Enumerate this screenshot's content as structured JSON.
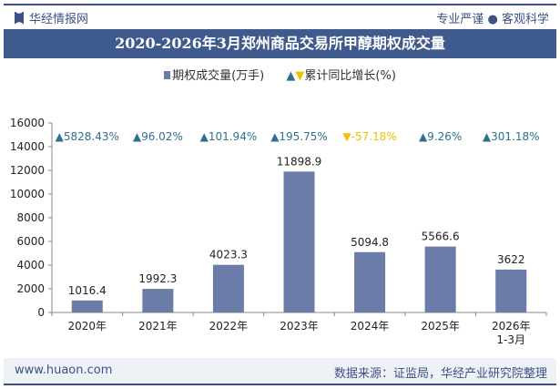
{
  "header": {
    "brand": "华经情报网",
    "slogan": "专业严谨 ● 客观科学"
  },
  "footer": {
    "site": "www.huaon.com",
    "source": "数据来源：证监局，华经产业研究院整理"
  },
  "colors": {
    "bar": "#6c7ca8",
    "up": "#2f6f8f",
    "down": "#f2c200",
    "title_bg": "#3f5a8c"
  },
  "chart_data": {
    "type": "bar",
    "title": "2020-2026年3月郑州商品交易所甲醇期权成交量",
    "categories": [
      "2020年",
      "2021年",
      "2022年",
      "2023年",
      "2024年",
      "2025年",
      "2026年\n1-3月"
    ],
    "series": [
      {
        "name": "期权成交量(万手)",
        "type": "bar",
        "values": [
          1016.4,
          1992.3,
          4023.3,
          11898.9,
          5094.8,
          5566.6,
          3622
        ]
      },
      {
        "name": "累计同比增长(%)",
        "type": "marker",
        "values": [
          5828.43,
          96.02,
          101.94,
          195.75,
          -57.18,
          9.26,
          301.18
        ],
        "labels": [
          "5828.43%",
          "96.02%",
          "101.94%",
          "195.75%",
          "-57.18%",
          "9.26%",
          "301.18%"
        ]
      }
    ],
    "ylim": [
      0,
      16000
    ],
    "yticks": [
      0,
      2000,
      4000,
      6000,
      8000,
      10000,
      12000,
      14000,
      16000
    ],
    "grid": false,
    "legend": "top"
  }
}
